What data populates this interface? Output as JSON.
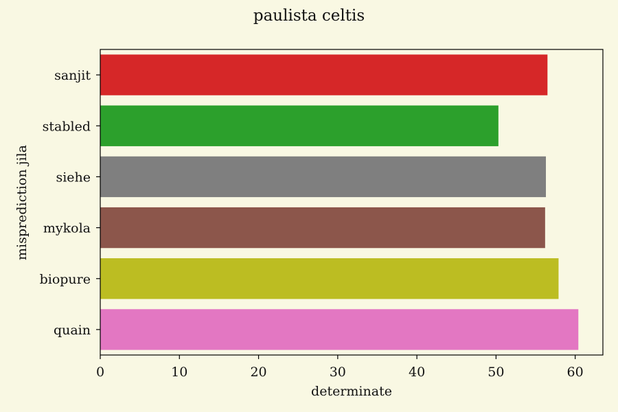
{
  "chart_data": {
    "type": "bar",
    "orientation": "horizontal",
    "title": "paulista celtis",
    "xlabel": "determinate",
    "ylabel": "misprediction jila",
    "categories": [
      "sanjit",
      "stabled",
      "siehe",
      "mykola",
      "biopure",
      "quain"
    ],
    "values": [
      56.5,
      50.3,
      56.3,
      56.2,
      57.9,
      60.4
    ],
    "colors": [
      "#d62728",
      "#2ca02c",
      "#7f7f7f",
      "#8c564b",
      "#bcbd22",
      "#e377c2"
    ],
    "xlim": [
      0,
      63.5
    ],
    "xticks": [
      0,
      10,
      20,
      30,
      40,
      50,
      60
    ],
    "grid": false,
    "legend": "none"
  }
}
